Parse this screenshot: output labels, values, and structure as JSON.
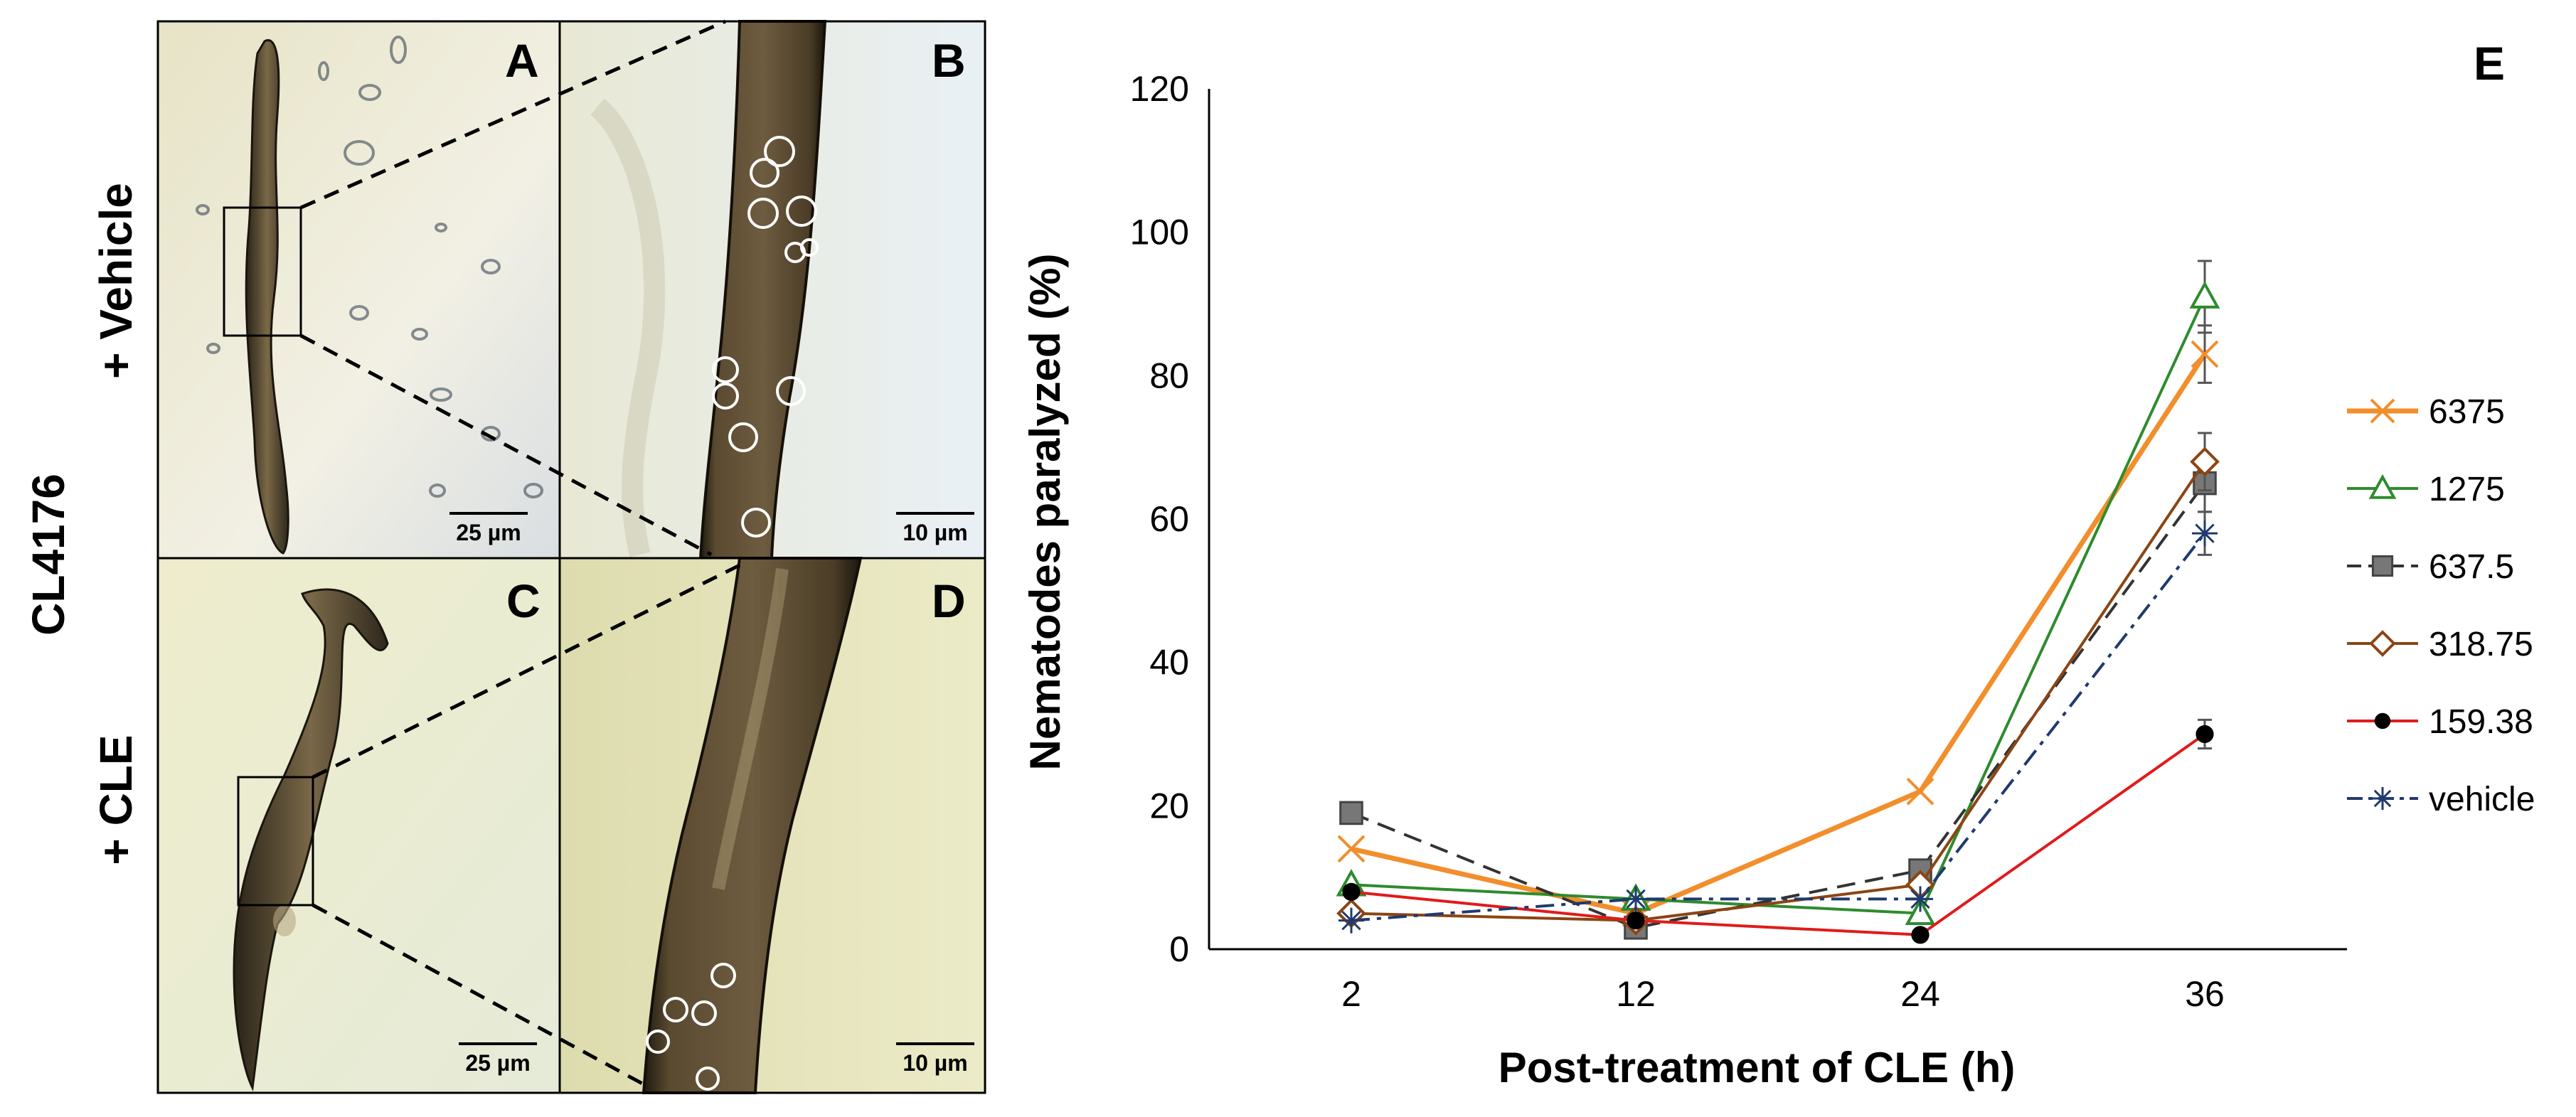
{
  "panels": {
    "strain_label": "CL4176",
    "row_labels": [
      "+ Vehicle",
      "+ CLE"
    ],
    "letters": {
      "A": "A",
      "B": "B",
      "C": "C",
      "D": "D",
      "E": "E"
    },
    "scale_bars": {
      "A": "25 µm",
      "B": "10 µm",
      "C": "25 µm",
      "D": "10 µm"
    }
  },
  "chart_data": {
    "type": "line",
    "title": "",
    "xlabel": "Post-treatment of CLE (h)",
    "ylabel": "Nematodes paralyzed (%)",
    "categories": [
      "2",
      "12",
      "24",
      "36"
    ],
    "ylim": [
      0,
      120
    ],
    "yticks": [
      "0",
      "20",
      "40",
      "60",
      "80",
      "100",
      "120"
    ],
    "legend_position": "right",
    "series": [
      {
        "name": "6375",
        "values": [
          14,
          5,
          22,
          83
        ],
        "errors": [
          0,
          0,
          0,
          4
        ],
        "color": "#F28E2B",
        "marker": "x",
        "dash": "solid"
      },
      {
        "name": "1275",
        "values": [
          9,
          7,
          5,
          91
        ],
        "errors": [
          0,
          0,
          0,
          5
        ],
        "color": "#2E8B2E",
        "marker": "triangle",
        "dash": "solid"
      },
      {
        "name": "637.5",
        "values": [
          19,
          3,
          11,
          65
        ],
        "errors": [
          0,
          0,
          0,
          4
        ],
        "color": "#333333",
        "marker": "square",
        "dash": "dash"
      },
      {
        "name": "318.75",
        "values": [
          5,
          4,
          9,
          68
        ],
        "errors": [
          0,
          0,
          0,
          4
        ],
        "color": "#8B4513",
        "marker": "diamond",
        "dash": "solid"
      },
      {
        "name": "159.38",
        "values": [
          8,
          4,
          2,
          30
        ],
        "errors": [
          0,
          0,
          0,
          2
        ],
        "color": "#E01B1B",
        "marker": "dot",
        "dash": "solid"
      },
      {
        "name": "vehicle",
        "values": [
          4,
          7,
          7,
          58
        ],
        "errors": [
          0,
          0,
          0,
          3
        ],
        "color": "#1F3A6E",
        "marker": "star",
        "dash": "dashdot"
      }
    ]
  }
}
